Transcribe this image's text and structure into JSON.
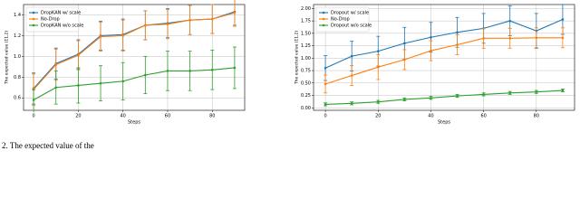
{
  "chart_data": [
    {
      "type": "line",
      "xlabel": "Steps",
      "ylabel": "The expected value (Σ1,2)",
      "x": [
        0,
        10,
        20,
        30,
        40,
        50,
        60,
        70,
        80,
        90
      ],
      "xlim": [
        -4.5,
        94.5
      ],
      "xticks": [
        0,
        20,
        40,
        60,
        80
      ],
      "ylim": [
        0.48,
        1.5
      ],
      "yticks": [
        {
          "value": 0.6,
          "label": "0.6"
        },
        {
          "value": 0.8,
          "label": "0.8"
        },
        {
          "value": 1.0,
          "label": "1.0"
        },
        {
          "value": 1.2,
          "label": "1.2"
        },
        {
          "value": 1.4,
          "label": "1.4"
        }
      ],
      "grid": true,
      "legend": "upper-left",
      "series": [
        {
          "name": "DropKAN w/ scale",
          "color": "#1f77b4",
          "values": [
            0.69,
            0.93,
            1.02,
            1.2,
            1.21,
            1.3,
            1.32,
            1.35,
            1.36,
            1.43
          ],
          "errors": [
            0.15,
            0.15,
            0.14,
            0.14,
            0.15,
            0.14,
            0.14,
            0.14,
            0.14,
            0.13
          ]
        },
        {
          "name": "No-Drop",
          "color": "#ff7f0e",
          "values": [
            0.68,
            0.92,
            1.01,
            1.19,
            1.2,
            1.3,
            1.31,
            1.35,
            1.36,
            1.42
          ],
          "errors": [
            0.15,
            0.15,
            0.14,
            0.14,
            0.15,
            0.14,
            0.14,
            0.14,
            0.14,
            0.13
          ]
        },
        {
          "name": "DropKAN w/o scale",
          "color": "#2ca02c",
          "values": [
            0.58,
            0.7,
            0.72,
            0.74,
            0.76,
            0.82,
            0.86,
            0.86,
            0.87,
            0.89
          ],
          "errors": [
            0.1,
            0.16,
            0.17,
            0.17,
            0.18,
            0.18,
            0.19,
            0.19,
            0.19,
            0.2
          ]
        }
      ]
    },
    {
      "type": "line",
      "xlabel": "Steps",
      "ylabel": "The expected value (Σ1,2)",
      "x": [
        0,
        10,
        20,
        30,
        40,
        50,
        60,
        70,
        80,
        90
      ],
      "xlim": [
        -4.5,
        94.5
      ],
      "xticks": [
        0,
        20,
        40,
        60,
        80
      ],
      "ylim": [
        -0.05,
        2.08
      ],
      "yticks": [
        {
          "value": 0,
          "label": "0.00"
        },
        {
          "value": 0.25,
          "label": "0.25"
        },
        {
          "value": 0.5,
          "label": "0.50"
        },
        {
          "value": 0.75,
          "label": "0.75"
        },
        {
          "value": 1.0,
          "label": "1.00"
        },
        {
          "value": 1.25,
          "label": "1.25"
        },
        {
          "value": 1.5,
          "label": "1.50"
        },
        {
          "value": 1.75,
          "label": "1.75"
        },
        {
          "value": 2.0,
          "label": "2.00"
        }
      ],
      "grid": true,
      "legend": "upper-left",
      "series": [
        {
          "name": "Dropout w/ scale",
          "color": "#1f77b4",
          "values": [
            0.8,
            1.04,
            1.14,
            1.3,
            1.42,
            1.52,
            1.6,
            1.75,
            1.55,
            1.78
          ],
          "errors": [
            0.25,
            0.3,
            0.3,
            0.32,
            0.3,
            0.3,
            0.3,
            0.3,
            0.35,
            0.3
          ]
        },
        {
          "name": "No-Drop",
          "color": "#ff7f0e",
          "values": [
            0.48,
            0.65,
            0.82,
            0.97,
            1.15,
            1.27,
            1.4,
            1.4,
            1.41,
            1.41
          ],
          "errors": [
            0.18,
            0.2,
            0.25,
            0.2,
            0.2,
            0.2,
            0.2,
            0.2,
            0.2,
            0.2
          ]
        },
        {
          "name": "Dropout w/o scale",
          "color": "#2ca02c",
          "values": [
            0.07,
            0.09,
            0.12,
            0.17,
            0.2,
            0.24,
            0.27,
            0.3,
            0.32,
            0.35
          ],
          "errors": [
            0.03,
            0.03,
            0.03,
            0.03,
            0.03,
            0.03,
            0.03,
            0.03,
            0.03,
            0.03
          ]
        }
      ]
    }
  ],
  "caption": "2. The expected value of the"
}
